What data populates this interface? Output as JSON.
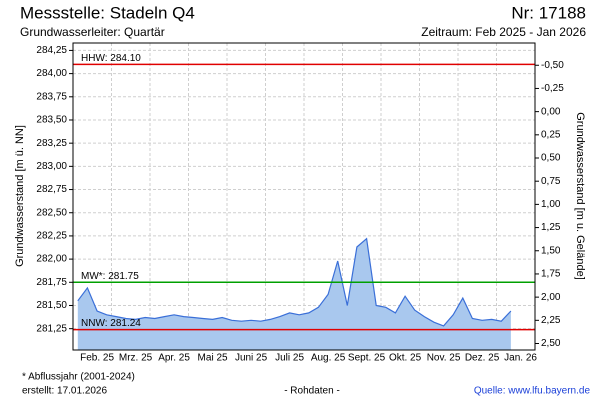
{
  "chart_data": {
    "type": "area",
    "title": "Messstelle: Stadeln Q4",
    "station_number": "Nr: 17188",
    "subtitle": "Grundwasserleiter: Quartär",
    "period": "Zeitraum: Feb 2025 - Jan 2026",
    "ylabel": "Grundwasserstand [m ü. NN]",
    "y2label": "Grundwasserstand [m u. Gelände]",
    "footnote": "* Abflussjahr (2001-2024)",
    "created": "erstellt:  17.01.2026",
    "status": "- Rohdaten -",
    "source": "Quelle: www.lfu.bayern.de",
    "categories": [
      null,
      null,
      "Feb. 25",
      null,
      null,
      null,
      "Mrz. 25",
      null,
      null,
      null,
      "Apr. 25",
      null,
      null,
      null,
      "Mai 25",
      null,
      null,
      null,
      "Juni 25",
      null,
      null,
      null,
      "Juli 25",
      null,
      null,
      null,
      "Aug. 25",
      null,
      null,
      null,
      "Sept. 25",
      null,
      null,
      null,
      "Okt. 25",
      null,
      null,
      null,
      "Nov. 25",
      null,
      null,
      null,
      "Dez. 25",
      null,
      null,
      null,
      "Jan. 26",
      null
    ],
    "series": [
      {
        "color": "#3a6fd8",
        "fill": "#a9c8ee",
        "values": [
          281.55,
          281.69,
          281.44,
          281.4,
          281.38,
          281.36,
          281.35,
          281.37,
          281.36,
          281.38,
          281.4,
          281.38,
          281.37,
          281.36,
          281.35,
          281.37,
          281.34,
          281.33,
          281.34,
          281.33,
          281.35,
          281.38,
          281.42,
          281.4,
          281.42,
          281.48,
          281.62,
          281.98,
          281.5,
          282.13,
          282.22,
          281.5,
          281.48,
          281.42,
          281.6,
          281.45,
          281.38,
          281.32,
          281.28,
          281.4,
          281.58,
          281.36,
          281.34,
          281.35,
          281.33,
          281.44,
          null,
          null
        ]
      }
    ],
    "reference_lines": [
      {
        "label": "HHW: 284.10",
        "value": 284.1,
        "color": "#e00000"
      },
      {
        "label": "MW*: 281.75",
        "value": 281.75,
        "color": "#00a000"
      },
      {
        "label": "NNW: 281.24",
        "value": 281.24,
        "color": "#e00000"
      }
    ],
    "ylim": [
      281.02,
      284.33
    ],
    "yticks": [
      {
        "value": 281.25,
        "label": "281,25"
      },
      {
        "value": 281.5,
        "label": "281,50"
      },
      {
        "value": 281.75,
        "label": "281,75"
      },
      {
        "value": 282,
        "label": "282,00"
      },
      {
        "value": 282.25,
        "label": "282,25"
      },
      {
        "value": 282.5,
        "label": "282,50"
      },
      {
        "value": 282.75,
        "label": "282,75"
      },
      {
        "value": 283,
        "label": "283,00"
      },
      {
        "value": 283.25,
        "label": "283,25"
      },
      {
        "value": 283.5,
        "label": "283,50"
      },
      {
        "value": 283.75,
        "label": "283,75"
      },
      {
        "value": 284,
        "label": "284,00"
      },
      {
        "value": 284.25,
        "label": "284,25"
      }
    ],
    "y2lim": [
      2.57,
      -0.74
    ],
    "y2ticks": [
      {
        "value": -0.5,
        "label": "-0,50"
      },
      {
        "value": -0.25,
        "label": "-0,25"
      },
      {
        "value": 0,
        "label": "0,00"
      },
      {
        "value": 0.25,
        "label": "0,25"
      },
      {
        "value": 0.5,
        "label": "0,50"
      },
      {
        "value": 0.75,
        "label": "0,75"
      },
      {
        "value": 1,
        "label": "1,00"
      },
      {
        "value": 1.25,
        "label": "1,25"
      },
      {
        "value": 1.5,
        "label": "1,50"
      },
      {
        "value": 1.75,
        "label": "1,75"
      },
      {
        "value": 2,
        "label": "2,00"
      },
      {
        "value": 2.25,
        "label": "2,25"
      },
      {
        "value": 2.5,
        "label": "2,50"
      }
    ],
    "grid": true
  }
}
